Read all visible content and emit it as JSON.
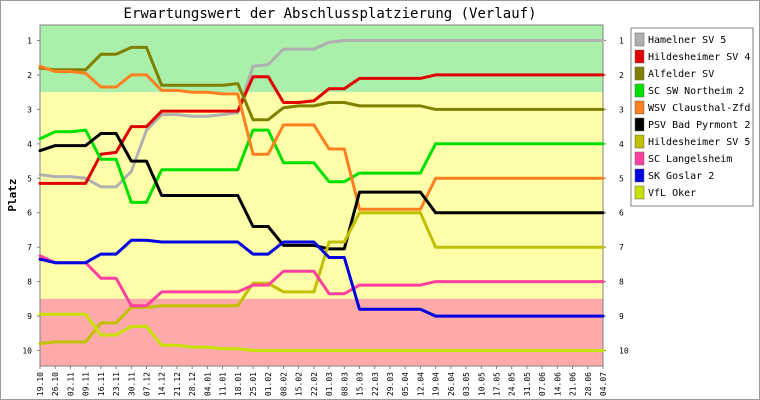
{
  "chart_data": {
    "type": "line",
    "title": "Erwartungswert der Abschlussplatzierung (Verlauf)",
    "ylabel": "Platz",
    "xlabel": "",
    "y_inverted": true,
    "ylim": [
      0.55,
      10.45
    ],
    "ticks_y": [
      "1",
      "2",
      "3",
      "4",
      "5",
      "6",
      "7",
      "8",
      "9",
      "10"
    ],
    "x": [
      "19.10",
      "26.10",
      "02.11",
      "09.11",
      "16.11",
      "23.11",
      "30.11",
      "07.12",
      "14.12",
      "21.12",
      "28.12",
      "04.01",
      "11.01",
      "18.01",
      "25.01",
      "01.02",
      "08.02",
      "15.02",
      "22.02",
      "01.03",
      "08.03",
      "15.03",
      "22.03",
      "29.03",
      "05.04",
      "12.04",
      "19.04",
      "26.04",
      "03.05",
      "10.05",
      "17.05",
      "24.05",
      "31.05",
      "07.06",
      "14.06",
      "21.06",
      "28.06",
      "04.07"
    ],
    "bands": [
      {
        "name": "promotion",
        "color": "#aaf0aa"
      },
      {
        "name": "middle",
        "color": "#ffffaa"
      },
      {
        "name": "relegation",
        "color": "#ffaaaa"
      }
    ],
    "legend_position": "right",
    "series": [
      {
        "name": "Hamelner SV 5",
        "color": "#b0b0b0",
        "values": [
          4.9,
          4.95,
          4.95,
          5.0,
          5.25,
          5.25,
          4.8,
          3.6,
          3.15,
          3.15,
          3.2,
          3.2,
          3.15,
          3.1,
          1.75,
          1.7,
          1.25,
          1.25,
          1.25,
          1.05,
          1.0,
          1.0,
          1.0,
          1.0,
          1.0,
          1.0,
          1.0,
          1.0,
          1.0,
          1.0,
          1.0,
          1.0,
          1.0,
          1.0,
          1.0,
          1.0,
          1.0,
          1.0
        ]
      },
      {
        "name": "Hildesheimer SV 4",
        "color": "#e00000",
        "values": [
          5.15,
          5.15,
          5.15,
          5.15,
          4.3,
          4.25,
          3.5,
          3.5,
          3.05,
          3.05,
          3.05,
          3.05,
          3.05,
          3.05,
          2.05,
          2.05,
          2.8,
          2.8,
          2.75,
          2.4,
          2.4,
          2.1,
          2.1,
          2.1,
          2.1,
          2.1,
          2.0,
          2.0,
          2.0,
          2.0,
          2.0,
          2.0,
          2.0,
          2.0,
          2.0,
          2.0,
          2.0,
          2.0
        ]
      },
      {
        "name": "Alfelder SV",
        "color": "#808000",
        "values": [
          1.8,
          1.85,
          1.85,
          1.85,
          1.4,
          1.4,
          1.2,
          1.2,
          2.3,
          2.3,
          2.3,
          2.3,
          2.3,
          2.25,
          3.3,
          3.3,
          2.95,
          2.9,
          2.9,
          2.8,
          2.8,
          2.9,
          2.9,
          2.9,
          2.9,
          2.9,
          3.0,
          3.0,
          3.0,
          3.0,
          3.0,
          3.0,
          3.0,
          3.0,
          3.0,
          3.0,
          3.0,
          3.0
        ]
      },
      {
        "name": "SC SW Northeim 2",
        "color": "#00e000",
        "values": [
          3.85,
          3.65,
          3.65,
          3.6,
          4.45,
          4.45,
          5.7,
          5.7,
          4.75,
          4.75,
          4.75,
          4.75,
          4.75,
          4.75,
          3.6,
          3.6,
          4.55,
          4.55,
          4.55,
          5.1,
          5.1,
          4.85,
          4.85,
          4.85,
          4.85,
          4.85,
          4.0,
          4.0,
          4.0,
          4.0,
          4.0,
          4.0,
          4.0,
          4.0,
          4.0,
          4.0,
          4.0,
          4.0
        ]
      },
      {
        "name": "WSV Clausthal-Zfd",
        "color": "#ff8020",
        "values": [
          1.75,
          1.9,
          1.9,
          1.95,
          2.35,
          2.35,
          2.0,
          2.0,
          2.45,
          2.45,
          2.5,
          2.5,
          2.55,
          2.55,
          4.3,
          4.3,
          3.45,
          3.45,
          3.45,
          4.15,
          4.15,
          5.9,
          5.9,
          5.9,
          5.9,
          5.9,
          5.0,
          5.0,
          5.0,
          5.0,
          5.0,
          5.0,
          5.0,
          5.0,
          5.0,
          5.0,
          5.0,
          5.0
        ]
      },
      {
        "name": "PSV Bad Pyrmont 2",
        "color": "#000000",
        "values": [
          4.2,
          4.05,
          4.05,
          4.05,
          3.7,
          3.7,
          4.5,
          4.5,
          5.5,
          5.5,
          5.5,
          5.5,
          5.5,
          5.5,
          6.4,
          6.4,
          6.95,
          6.95,
          6.95,
          7.05,
          7.05,
          5.4,
          5.4,
          5.4,
          5.4,
          5.4,
          6.0,
          6.0,
          6.0,
          6.0,
          6.0,
          6.0,
          6.0,
          6.0,
          6.0,
          6.0,
          6.0,
          6.0
        ]
      },
      {
        "name": "Hildesheimer SV 5",
        "color": "#c0c000",
        "values": [
          9.8,
          9.75,
          9.75,
          9.75,
          9.2,
          9.2,
          8.75,
          8.75,
          8.7,
          8.7,
          8.7,
          8.7,
          8.7,
          8.7,
          8.05,
          8.05,
          8.3,
          8.3,
          8.3,
          6.85,
          6.85,
          6.0,
          6.0,
          6.0,
          6.0,
          6.0,
          7.0,
          7.0,
          7.0,
          7.0,
          7.0,
          7.0,
          7.0,
          7.0,
          7.0,
          7.0,
          7.0,
          7.0
        ]
      },
      {
        "name": "SC Langelsheim",
        "color": "#ff40a0",
        "values": [
          7.25,
          7.45,
          7.45,
          7.45,
          7.9,
          7.9,
          8.7,
          8.7,
          8.3,
          8.3,
          8.3,
          8.3,
          8.3,
          8.3,
          8.1,
          8.1,
          7.7,
          7.7,
          7.7,
          8.35,
          8.35,
          8.1,
          8.1,
          8.1,
          8.1,
          8.1,
          8.0,
          8.0,
          8.0,
          8.0,
          8.0,
          8.0,
          8.0,
          8.0,
          8.0,
          8.0,
          8.0,
          8.0
        ]
      },
      {
        "name": "SK Goslar 2",
        "color": "#0000e0",
        "values": [
          7.35,
          7.45,
          7.45,
          7.45,
          7.2,
          7.2,
          6.8,
          6.8,
          6.85,
          6.85,
          6.85,
          6.85,
          6.85,
          6.85,
          7.2,
          7.2,
          6.85,
          6.85,
          6.85,
          7.3,
          7.3,
          8.8,
          8.8,
          8.8,
          8.8,
          8.8,
          9.0,
          9.0,
          9.0,
          9.0,
          9.0,
          9.0,
          9.0,
          9.0,
          9.0,
          9.0,
          9.0,
          9.0
        ]
      },
      {
        "name": "VfL Oker",
        "color": "#c8e000",
        "values": [
          8.95,
          8.95,
          8.95,
          8.95,
          9.55,
          9.55,
          9.3,
          9.3,
          9.85,
          9.85,
          9.9,
          9.9,
          9.95,
          9.95,
          10.0,
          10.0,
          10.0,
          10.0,
          10.0,
          10.0,
          10.0,
          10.0,
          10.0,
          10.0,
          10.0,
          10.0,
          10.0,
          10.0,
          10.0,
          10.0,
          10.0,
          10.0,
          10.0,
          10.0,
          10.0,
          10.0,
          10.0,
          10.0
        ]
      }
    ]
  }
}
